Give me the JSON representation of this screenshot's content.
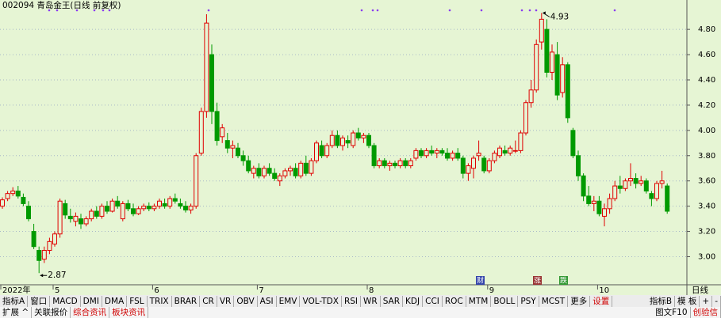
{
  "title": "002094 青岛金王(日线 前复权)",
  "chart_data": {
    "type": "candlestick",
    "categories": [
      "2022年",
      null,
      null,
      null,
      null,
      null,
      null,
      null,
      null,
      null,
      "5",
      null,
      null,
      null,
      null,
      null,
      null,
      null,
      null,
      null,
      null,
      null,
      null,
      null,
      null,
      null,
      null,
      null,
      null,
      "6",
      null,
      null,
      null,
      null,
      null,
      null,
      null,
      null,
      null,
      null,
      null,
      null,
      null,
      null,
      null,
      null,
      null,
      null,
      null,
      "7",
      null,
      null,
      null,
      null,
      null,
      null,
      null,
      null,
      null,
      null,
      null,
      null,
      null,
      null,
      null,
      null,
      null,
      null,
      null,
      null,
      "8",
      null,
      null,
      null,
      null,
      null,
      null,
      null,
      null,
      null,
      null,
      null,
      null,
      null,
      null,
      null,
      null,
      null,
      null,
      null,
      null,
      null,
      null,
      "9",
      null,
      null,
      null,
      null,
      null,
      null,
      null,
      null,
      null,
      null,
      null,
      null,
      null,
      null,
      null,
      null,
      null,
      null,
      null,
      null,
      "10",
      null,
      null,
      null,
      null,
      null,
      null,
      null,
      null,
      null,
      null,
      null,
      null,
      null
    ],
    "open": [
      3.4,
      3.46,
      3.5,
      3.52,
      3.47,
      3.4,
      3.2,
      3.05,
      2.98,
      3.05,
      3.1,
      3.18,
      3.42,
      3.32,
      3.28,
      3.3,
      3.26,
      3.3,
      3.36,
      3.32,
      3.4,
      3.36,
      3.44,
      3.3,
      3.42,
      3.38,
      3.34,
      3.38,
      3.4,
      3.38,
      3.4,
      3.42,
      3.4,
      3.46,
      3.42,
      3.4,
      3.37,
      3.4,
      3.82,
      4.15,
      4.6,
      4.15,
      3.95,
      3.92,
      3.86,
      3.86,
      3.8,
      3.76,
      3.66,
      3.7,
      3.64,
      3.7,
      3.66,
      3.6,
      3.64,
      3.68,
      3.7,
      3.64,
      3.74,
      3.66,
      3.76,
      3.88,
      3.8,
      3.88,
      3.96,
      3.88,
      3.92,
      3.88,
      3.98,
      3.94,
      3.96,
      3.88,
      3.72,
      3.76,
      3.72,
      3.74,
      3.72,
      3.76,
      3.72,
      3.78,
      3.84,
      3.8,
      3.84,
      3.82,
      3.84,
      3.82,
      3.78,
      3.82,
      3.78,
      3.66,
      3.7,
      3.8,
      3.78,
      3.68,
      3.76,
      3.8,
      3.84,
      3.82,
      3.84,
      3.84,
      3.98,
      4.22,
      4.32,
      4.7,
      4.8,
      4.46,
      4.6,
      4.3,
      4.52,
      4.0,
      3.8,
      3.64,
      3.48,
      3.42,
      3.44,
      3.32,
      3.38,
      3.46,
      3.56,
      3.54,
      3.6,
      3.62,
      3.58,
      3.6,
      3.5,
      3.46,
      3.58,
      3.56
    ],
    "high": [
      3.47,
      3.52,
      3.55,
      3.56,
      3.5,
      3.44,
      3.26,
      3.08,
      3.08,
      3.15,
      3.2,
      3.46,
      3.45,
      3.38,
      3.35,
      3.34,
      3.32,
      3.38,
      3.4,
      3.42,
      3.44,
      3.46,
      3.48,
      3.44,
      3.45,
      3.42,
      3.4,
      3.42,
      3.43,
      3.42,
      3.46,
      3.46,
      3.48,
      3.5,
      3.46,
      3.44,
      3.42,
      3.82,
      4.18,
      4.92,
      4.68,
      4.22,
      4.05,
      3.98,
      3.92,
      3.9,
      3.84,
      3.8,
      3.72,
      3.74,
      3.72,
      3.74,
      3.7,
      3.66,
      3.7,
      3.72,
      3.74,
      3.76,
      3.8,
      3.78,
      3.92,
      3.92,
      3.9,
      4.0,
      4.0,
      3.96,
      3.96,
      4.0,
      4.02,
      3.98,
      3.98,
      3.9,
      3.78,
      3.78,
      3.76,
      3.76,
      3.78,
      3.78,
      3.78,
      3.86,
      3.86,
      3.86,
      3.88,
      3.86,
      3.86,
      3.86,
      3.84,
      3.86,
      3.8,
      3.74,
      3.8,
      3.92,
      3.8,
      3.78,
      3.84,
      3.88,
      3.88,
      3.88,
      3.92,
      4.0,
      4.24,
      4.4,
      4.72,
      4.93,
      4.88,
      4.68,
      4.7,
      4.58,
      4.54,
      4.02,
      3.84,
      3.66,
      3.56,
      3.48,
      3.48,
      3.42,
      3.5,
      3.6,
      3.64,
      3.62,
      3.74,
      3.66,
      3.64,
      3.62,
      3.52,
      3.6,
      3.68,
      3.58
    ],
    "low": [
      3.38,
      3.44,
      3.48,
      3.46,
      3.4,
      3.28,
      3.06,
      2.87,
      2.95,
      3.02,
      3.08,
      3.15,
      3.3,
      3.27,
      3.24,
      3.22,
      3.24,
      3.28,
      3.3,
      3.3,
      3.34,
      3.35,
      3.38,
      3.28,
      3.36,
      3.32,
      3.33,
      3.36,
      3.36,
      3.36,
      3.38,
      3.38,
      3.38,
      3.42,
      3.38,
      3.35,
      3.34,
      3.38,
      3.8,
      4.1,
      4.05,
      3.88,
      3.9,
      3.82,
      3.78,
      3.78,
      3.72,
      3.66,
      3.62,
      3.62,
      3.62,
      3.64,
      3.6,
      3.56,
      3.62,
      3.64,
      3.62,
      3.62,
      3.64,
      3.64,
      3.74,
      3.78,
      3.78,
      3.86,
      3.86,
      3.84,
      3.86,
      3.86,
      3.92,
      3.9,
      3.86,
      3.7,
      3.7,
      3.7,
      3.68,
      3.7,
      3.7,
      3.7,
      3.7,
      3.76,
      3.78,
      3.78,
      3.8,
      3.78,
      3.8,
      3.76,
      3.76,
      3.76,
      3.62,
      3.6,
      3.62,
      3.76,
      3.66,
      3.66,
      3.74,
      3.78,
      3.8,
      3.8,
      3.82,
      3.82,
      3.96,
      4.18,
      4.3,
      4.64,
      4.42,
      4.4,
      4.24,
      4.26,
      4.06,
      3.78,
      3.6,
      3.44,
      3.4,
      3.36,
      3.32,
      3.24,
      3.34,
      3.44,
      3.5,
      3.52,
      3.56,
      3.54,
      3.56,
      3.5,
      3.4,
      3.44,
      3.54,
      3.34
    ],
    "close": [
      3.45,
      3.5,
      3.52,
      3.48,
      3.42,
      3.3,
      3.08,
      2.97,
      3.05,
      3.12,
      3.18,
      3.44,
      3.33,
      3.3,
      3.32,
      3.26,
      3.3,
      3.36,
      3.32,
      3.4,
      3.36,
      3.44,
      3.4,
      3.42,
      3.38,
      3.34,
      3.38,
      3.4,
      3.38,
      3.4,
      3.44,
      3.4,
      3.46,
      3.44,
      3.4,
      3.37,
      3.4,
      3.8,
      4.15,
      4.85,
      4.15,
      3.92,
      4.02,
      3.86,
      3.88,
      3.8,
      3.76,
      3.68,
      3.7,
      3.64,
      3.7,
      3.66,
      3.62,
      3.64,
      3.68,
      3.7,
      3.64,
      3.74,
      3.66,
      3.76,
      3.9,
      3.8,
      3.88,
      3.96,
      3.88,
      3.94,
      3.9,
      3.98,
      3.94,
      3.96,
      3.88,
      3.72,
      3.76,
      3.72,
      3.74,
      3.72,
      3.76,
      3.72,
      3.76,
      3.84,
      3.8,
      3.84,
      3.82,
      3.84,
      3.82,
      3.78,
      3.82,
      3.78,
      3.66,
      3.72,
      3.78,
      3.82,
      3.68,
      3.76,
      3.82,
      3.86,
      3.82,
      3.86,
      3.84,
      3.98,
      4.22,
      4.32,
      4.68,
      4.88,
      4.46,
      4.62,
      4.28,
      4.52,
      4.1,
      3.8,
      3.64,
      3.48,
      3.42,
      3.44,
      3.34,
      3.38,
      3.46,
      3.56,
      3.54,
      3.6,
      3.62,
      3.58,
      3.6,
      3.52,
      3.46,
      3.58,
      3.6,
      3.36
    ],
    "up_color": "#e00000",
    "down_color": "#009a00",
    "ylim": [
      2.79,
      4.97
    ],
    "yticks": [
      {
        "value": 3,
        "label": "3.00"
      },
      {
        "value": 3.2,
        "label": "3.20"
      },
      {
        "value": 3.4,
        "label": "3.40"
      },
      {
        "value": 3.6,
        "label": "3.60"
      },
      {
        "value": 3.8,
        "label": "3.80"
      },
      {
        "value": 4,
        "label": "4.00"
      },
      {
        "value": 4.2,
        "label": "4.20"
      },
      {
        "value": 4.4,
        "label": "4.40"
      },
      {
        "value": 4.6,
        "label": "4.60"
      },
      {
        "value": 4.8,
        "label": "4.80"
      }
    ],
    "grid": true,
    "annotations": [
      {
        "label": "2.87",
        "value": 2.87
      },
      {
        "label": "4.93",
        "value": 4.93
      }
    ]
  },
  "icons": [
    "财",
    "涨",
    "跌"
  ],
  "period": "日线",
  "zoom": [
    "+",
    "-"
  ],
  "toolbar": [
    "指标A",
    "窗口",
    "MACD",
    "DMI",
    "DMA",
    "FSL",
    "TRIX",
    "BRAR",
    "CR",
    "VR",
    "OBV",
    "ASI",
    "EMV",
    "VOL-TDX",
    "RSI",
    "WR",
    "SAR",
    "KDJ",
    "CCI",
    "ROC",
    "MTM",
    "BOLL",
    "PSY",
    "MCST",
    "更多",
    "设置"
  ],
  "toolbar_right": [
    "指标B",
    "模 板"
  ],
  "tabs": [
    "扩展 ^",
    "关联报价",
    "综合资讯",
    "板块资讯"
  ],
  "tabs_right": [
    "图文F10",
    "创验信"
  ]
}
